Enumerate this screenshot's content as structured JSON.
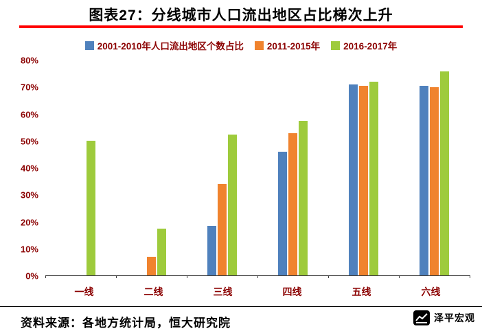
{
  "title": "图表27：分线城市人口流出地区占比梯次上升",
  "source": "资料来源：各地方统计局，恒大研究院",
  "logo": {
    "text": "泽平宏观"
  },
  "theme": {
    "title_underline_color": "#ff0000",
    "axis_text_color": "#8b0000",
    "footer_rule_color": "#000000"
  },
  "chart_data": {
    "type": "bar",
    "title": "图表27：分线城市人口流出地区占比梯次上升",
    "categories": [
      "一线",
      "二线",
      "三线",
      "四线",
      "五线",
      "六线"
    ],
    "series": [
      {
        "name": "2001-2010年人口流出地区个数占比",
        "color": "#4f81bd",
        "values": [
          0,
          0,
          18.5,
          46,
          71,
          70.5
        ]
      },
      {
        "name": "2011-2015年",
        "color": "#f0832e",
        "values": [
          0,
          7,
          34,
          53,
          70.5,
          70
        ]
      },
      {
        "name": "2016-2017年",
        "color": "#9ecb3c",
        "values": [
          50,
          17.5,
          52.5,
          57.5,
          72,
          76
        ]
      }
    ],
    "xlabel": "",
    "ylabel": "",
    "ylim": [
      0,
      80
    ],
    "ytick_step": 10,
    "ytick_format": "percent",
    "legend_position": "top",
    "grid": false
  }
}
